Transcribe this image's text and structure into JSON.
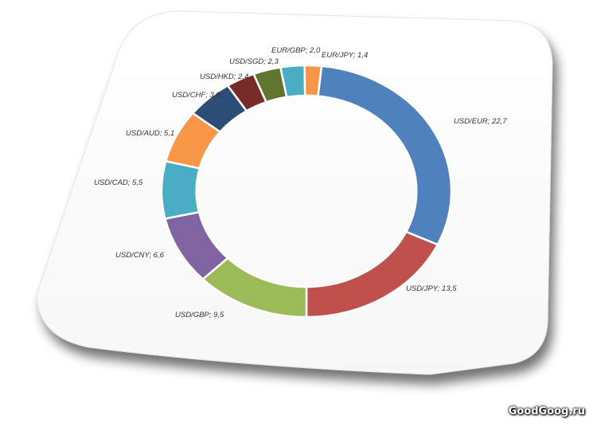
{
  "chart_data": {
    "type": "pie",
    "donut": true,
    "slices": [
      {
        "label": "USD/EUR; 22,7",
        "name": "USD/EUR",
        "value": 22.7,
        "color": "#4f81bd"
      },
      {
        "label": "USD/JPY; 13,5",
        "name": "USD/JPY",
        "value": 13.5,
        "color": "#c0504d"
      },
      {
        "label": "USD/GBP; 9,5",
        "name": "USD/GBP",
        "value": 9.5,
        "color": "#9bbb59"
      },
      {
        "label": "USD/CNY; 6,6",
        "name": "USD/CNY",
        "value": 6.6,
        "color": "#8064a2"
      },
      {
        "label": "USD/CAD; 5,5",
        "name": "USD/CAD",
        "value": 5.5,
        "color": "#4bacc6"
      },
      {
        "label": "USD/AUD; 5,1",
        "name": "USD/AUD",
        "value": 5.1,
        "color": "#f79646"
      },
      {
        "label": "USD/CHF; 3,9",
        "name": "USD/CHF",
        "value": 3.9,
        "color": "#2c4d75"
      },
      {
        "label": "USD/HKD; 2,4",
        "name": "USD/HKD",
        "value": 2.4,
        "color": "#772c2a"
      },
      {
        "label": "USD/SGD; 2,3",
        "name": "USD/SGD",
        "value": 2.3,
        "color": "#5f7530"
      },
      {
        "label": "EUR/GBP; 2,0",
        "name": "EUR/GBP",
        "value": 2.0,
        "color": "#4bacc6"
      },
      {
        "label": "EUR/JPY; 1,4",
        "name": "EUR/JPY",
        "value": 1.4,
        "color": "#f79646"
      }
    ]
  },
  "watermark": "GoodGoog.ru"
}
